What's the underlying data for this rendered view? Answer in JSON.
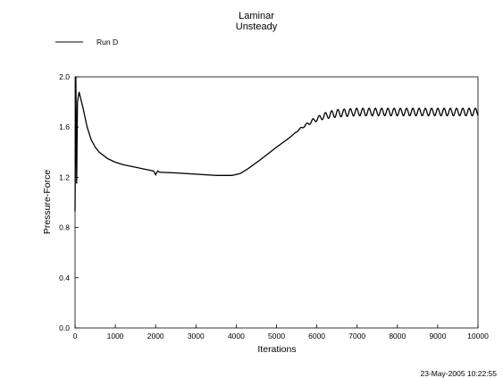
{
  "chart_data": {
    "type": "line",
    "title": "Laminar",
    "subtitle": "Unsteady",
    "xlabel": "Iterations",
    "ylabel": "Pressure-Force",
    "xlim": [
      0,
      10000
    ],
    "ylim": [
      0.0,
      2.0
    ],
    "x_ticks": [
      "0",
      "1000",
      "2000",
      "3000",
      "4000",
      "5000",
      "6000",
      "7000",
      "8000",
      "9000",
      "10000"
    ],
    "y_ticks": [
      "0.0",
      "0.4",
      "0.8",
      "1.2",
      "1.6",
      "2.0"
    ],
    "grid": false,
    "legend_position": "top-left",
    "series": [
      {
        "name": "Run D",
        "color": "#000000",
        "points": [
          [
            0,
            0.93
          ],
          [
            20,
            2.0
          ],
          [
            40,
            1.15
          ],
          [
            60,
            1.8
          ],
          [
            100,
            1.88
          ],
          [
            200,
            1.75
          ],
          [
            300,
            1.6
          ],
          [
            400,
            1.5
          ],
          [
            500,
            1.44
          ],
          [
            600,
            1.4
          ],
          [
            800,
            1.35
          ],
          [
            1000,
            1.32
          ],
          [
            1200,
            1.3
          ],
          [
            1500,
            1.28
          ],
          [
            1800,
            1.26
          ],
          [
            1950,
            1.25
          ],
          [
            2000,
            1.22
          ],
          [
            2050,
            1.25
          ],
          [
            2100,
            1.24
          ],
          [
            2500,
            1.235
          ],
          [
            3000,
            1.225
          ],
          [
            3500,
            1.215
          ],
          [
            3900,
            1.215
          ],
          [
            4100,
            1.23
          ],
          [
            4300,
            1.27
          ],
          [
            4600,
            1.34
          ],
          [
            5000,
            1.44
          ],
          [
            5300,
            1.51
          ],
          [
            5600,
            1.59
          ],
          [
            5900,
            1.65
          ],
          [
            6200,
            1.69
          ],
          [
            6500,
            1.71
          ],
          [
            7000,
            1.72
          ],
          [
            8000,
            1.72
          ],
          [
            9000,
            1.72
          ],
          [
            10000,
            1.72
          ]
        ],
        "oscillation": {
          "start": 5400,
          "full": 6400,
          "amplitude": 0.03,
          "period": 155
        }
      }
    ],
    "timestamp": "23-May-2005 10:22:55"
  }
}
